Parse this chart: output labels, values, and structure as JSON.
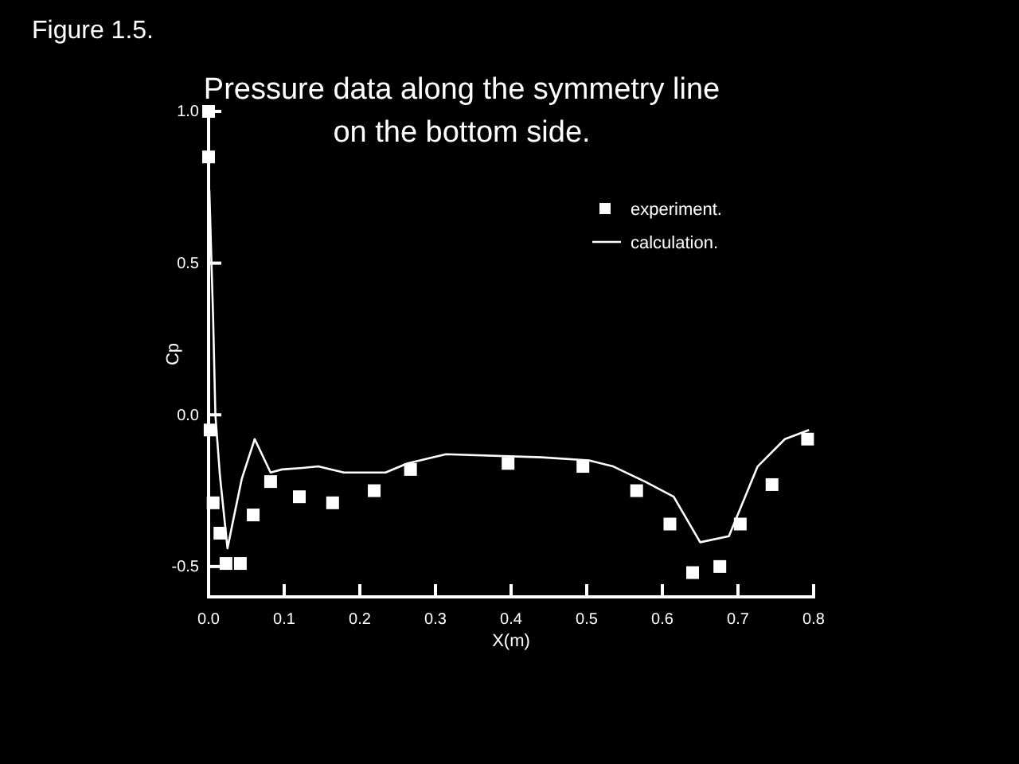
{
  "chart_data": {
    "type": "scatter",
    "title": "Pressure data along the symmetry line\non the bottom side.",
    "xlabel": "X(m)",
    "ylabel": "Cp",
    "annotations": [
      "Figure 1.5."
    ],
    "xlim": [
      0,
      0.8
    ],
    "ylim": [
      -0.6,
      1.0
    ],
    "xticks": [
      {
        "value": 0,
        "label": "0.0"
      },
      0.1,
      0.2,
      0.3,
      0.4,
      0.5,
      0.6,
      0.7,
      0.8
    ],
    "yticks": [
      -0.5,
      {
        "value": 0,
        "label": "0.0"
      },
      0.5,
      {
        "value": 1,
        "label": "1.0"
      }
    ],
    "legend": "top right",
    "grid": false,
    "series": [
      {
        "name": "experiment.",
        "marker": "square",
        "color": "#ffffff",
        "x": [
          0,
          0,
          0.002,
          0.006,
          0.015,
          0.023,
          0.042,
          0.059,
          0.082,
          0.12,
          0.164,
          0.219,
          0.267,
          0.396,
          0.495,
          0.566,
          0.61,
          0.64,
          0.676,
          0.703,
          0.745,
          0.792
        ],
        "values": [
          1.0,
          0.85,
          -0.05,
          -0.29,
          -0.39,
          -0.49,
          -0.49,
          -0.33,
          -0.22,
          -0.27,
          -0.29,
          -0.25,
          -0.18,
          -0.16,
          -0.17,
          -0.25,
          -0.36,
          -0.52,
          -0.5,
          -0.36,
          -0.23,
          -0.08
        ]
      },
      {
        "name": "calculation.",
        "type": "line",
        "line_style": "solid",
        "marker": "none",
        "color": "#ffffff",
        "x": [
          0.001,
          0.006,
          0.009,
          0.015,
          0.025,
          0.034,
          0.044,
          0.061,
          0.082,
          0.097,
          0.124,
          0.145,
          0.179,
          0.234,
          0.263,
          0.314,
          0.44,
          0.503,
          0.535,
          0.577,
          0.615,
          0.65,
          0.688,
          0.726,
          0.762,
          0.794
        ],
        "values": [
          0.74,
          0.32,
          0.0,
          -0.2,
          -0.44,
          -0.33,
          -0.21,
          -0.08,
          -0.19,
          -0.18,
          -0.175,
          -0.17,
          -0.19,
          -0.19,
          -0.16,
          -0.13,
          -0.14,
          -0.15,
          -0.17,
          -0.22,
          -0.27,
          -0.42,
          -0.4,
          -0.17,
          -0.08,
          -0.05
        ]
      }
    ]
  }
}
